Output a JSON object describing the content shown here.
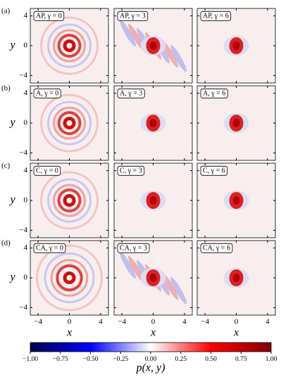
{
  "chart_data": {
    "type": "heatmap",
    "row_labels": [
      "(a)",
      "(b)",
      "(c)",
      "(d)"
    ],
    "panels": [
      {
        "label": "AP, γ = 0"
      },
      {
        "label": "AP, γ = 3"
      },
      {
        "label": "AP, γ = 6"
      },
      {
        "label": "A, γ = 0"
      },
      {
        "label": "A, γ = 3"
      },
      {
        "label": "A, γ = 6"
      },
      {
        "label": "C, γ = 0"
      },
      {
        "label": "C, γ = 3"
      },
      {
        "label": "C, γ = 6"
      },
      {
        "label": "CA, γ = 0"
      },
      {
        "label": "CA, γ = 3"
      },
      {
        "label": "CA, γ = 6"
      }
    ],
    "xlabel": "x",
    "ylabel": "y",
    "xlim": [
      -5,
      5
    ],
    "ylim": [
      -5,
      5
    ],
    "xticks": [
      {
        "value": -4,
        "label": "−4"
      },
      0,
      4
    ],
    "yticks": [
      {
        "value": -4,
        "label": "−4"
      },
      0,
      4
    ],
    "colorbar": {
      "label": "p(x, y)",
      "lim": [
        -1,
        1
      ],
      "colors": [
        "#00004c",
        "#0000ff",
        "#ffffff",
        "#ff0000",
        "#800000"
      ],
      "ticks": [
        {
          "value": -1,
          "label": "−1.00"
        },
        {
          "value": -0.75,
          "label": "−0.75"
        },
        {
          "value": -0.5,
          "label": "−0.50"
        },
        {
          "value": -0.25,
          "label": "−0.25"
        },
        {
          "value": 0,
          "label": "0.00"
        },
        {
          "value": 0.25,
          "label": "0.25"
        },
        {
          "value": 0.5,
          "label": "0.50"
        },
        {
          "value": 0.75,
          "label": "0.75"
        },
        {
          "value": 1,
          "label": "1.00"
        }
      ]
    }
  }
}
